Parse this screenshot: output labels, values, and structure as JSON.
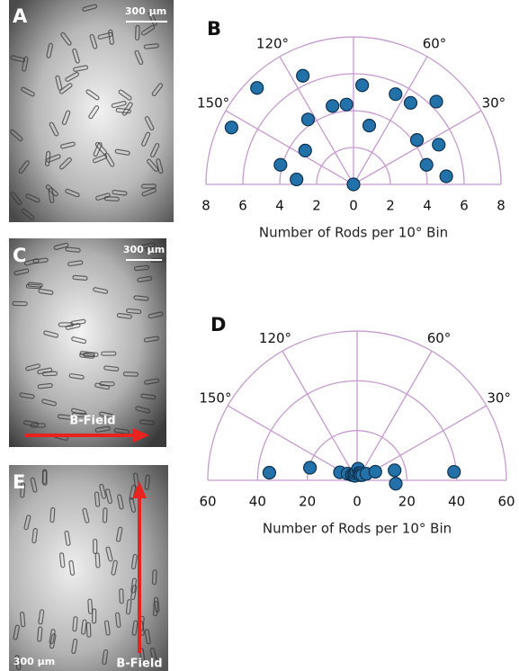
{
  "images": [
    {
      "label": "A",
      "scale": "300 μm"
    },
    {
      "label": "C",
      "scale": "300 μm",
      "field": "B-Field"
    },
    {
      "label": "E",
      "scale": "300 μm",
      "field": "B-Field"
    }
  ],
  "chart_data": [
    {
      "type": "polar-scatter",
      "panel_label": "B",
      "xlabel": "Number of Rods per 10° Bin",
      "color": "#2271a8",
      "grid_color": "#c79ad0",
      "rlim": [
        0,
        8
      ],
      "rticks": [
        2,
        4,
        6,
        8
      ],
      "xticks": [
        {
          "value": -8,
          "label": "8"
        },
        {
          "value": -6,
          "label": "6"
        },
        {
          "value": -4,
          "label": "4"
        },
        {
          "value": -2,
          "label": "2"
        },
        0,
        2,
        4,
        6,
        8
      ],
      "angle_ticks": [
        {
          "value": 30,
          "label": "30°"
        },
        {
          "value": 60,
          "label": "60°"
        },
        {
          "value": 90,
          "label": null
        },
        {
          "value": 120,
          "label": "120°"
        },
        {
          "value": 150,
          "label": "150°"
        }
      ],
      "theta": [
        155,
        135,
        115,
        125,
        105,
        95,
        85,
        75,
        65,
        55,
        45,
        35,
        25,
        15,
        5,
        145,
        165,
        175,
        0
      ],
      "r": [
        7.3,
        7.4,
        6.5,
        4.3,
        4.4,
        4.35,
        5.4,
        3.3,
        5.4,
        5.4,
        6.35,
        4.2,
        5.1,
        4.1,
        5.05,
        3.2,
        4.1,
        3.1,
        0
      ]
    },
    {
      "type": "polar-scatter",
      "panel_label": "D",
      "xlabel": "Number of Rods per 10° Bin",
      "color": "#2271a8",
      "grid_color": "#c79ad0",
      "rlim": [
        0,
        60
      ],
      "rticks": [
        20,
        40,
        60
      ],
      "xticks": [
        {
          "value": -60,
          "label": "60"
        },
        {
          "value": -40,
          "label": "40"
        },
        {
          "value": -20,
          "label": "20"
        },
        0,
        20,
        40,
        60
      ],
      "angle_ticks": [
        {
          "value": 30,
          "label": "30°"
        },
        {
          "value": 60,
          "label": "60°"
        },
        {
          "value": 90,
          "label": null
        },
        {
          "value": 120,
          "label": "120°"
        },
        {
          "value": 150,
          "label": "150°"
        }
      ],
      "theta": [
        175,
        165,
        155,
        145,
        135,
        125,
        115,
        105,
        95,
        85,
        75,
        65,
        55,
        45,
        35,
        25,
        15,
        5,
        -5
      ],
      "r": [
        35.4,
        19.6,
        7.6,
        4.7,
        3,
        2.5,
        2,
        3,
        3.5,
        4.7,
        3,
        3.2,
        2.5,
        3,
        4.6,
        8.1,
        15.6,
        39.1,
        15.6
      ]
    }
  ]
}
